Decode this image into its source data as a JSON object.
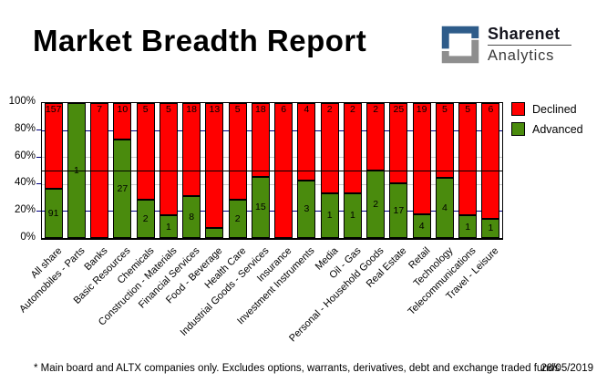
{
  "header": {
    "title": "Market Breadth Report",
    "brand": {
      "top": "Sharenet",
      "bottom": "Analytics",
      "logo_blue": "#2e5c8a",
      "logo_gray": "#8e8e8e"
    }
  },
  "chart_data": {
    "type": "bar",
    "subtype": "stacked-percent",
    "title": "Market Breadth Report",
    "categories": [
      "All share",
      "Automobiles - Parts",
      "Banks",
      "Basic Resources",
      "Chemicals",
      "Construction - Materials",
      "Financial Services",
      "Food - Beverage",
      "Health Care",
      "Industrial Goods - Services",
      "Insurance",
      "Investment Instruments",
      "Media",
      "Oil - Gas",
      "Personal - Household Goods",
      "Real Estate",
      "Retail",
      "Technology",
      "Telecommunications",
      "Travel - Leisure"
    ],
    "series": [
      {
        "name": "Declined",
        "color": "#ff0000",
        "values": [
          157,
          0,
          7,
          10,
          5,
          5,
          18,
          13,
          5,
          18,
          6,
          4,
          2,
          2,
          2,
          25,
          19,
          5,
          5,
          6
        ]
      },
      {
        "name": "Advanced",
        "color": "#4a8b0d",
        "values": [
          91,
          1,
          0,
          27,
          2,
          1,
          8,
          1,
          2,
          15,
          0,
          3,
          1,
          1,
          2,
          17,
          4,
          4,
          1,
          1
        ]
      }
    ],
    "y_axis": {
      "tick_labels": [
        "100%",
        "80%",
        "60%",
        "40%",
        "20%",
        "0%"
      ],
      "min": 0,
      "max": 100,
      "unit": "%"
    },
    "reference_line_pct": 50,
    "gridlines": {
      "navy_pct": [
        20,
        80
      ],
      "gray_pct": [
        40,
        60
      ],
      "navy_color": "#000080",
      "gray_color": "#c9c9c9"
    },
    "legend_position": "right"
  },
  "footer": {
    "note": "* Main board and ALTX companies only. Excludes options, warrants, derivatives, debt and exchange traded funds",
    "date": "28/05/2019"
  }
}
